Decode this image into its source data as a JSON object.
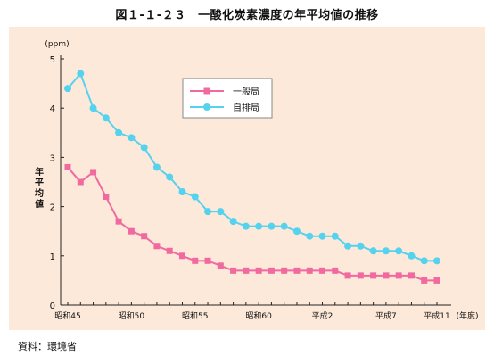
{
  "title": "図１-１-２３　一酸化炭素濃度の年平均値の推移",
  "source": "資料：環境省",
  "chart_data": {
    "type": "line",
    "unit_label": "(ppm)",
    "ylabel_chars": [
      "年",
      "平",
      "均",
      "値"
    ],
    "x_suffix": "(年度)",
    "ylim": [
      0,
      5
    ],
    "yticks": [
      0,
      1,
      2,
      3,
      4,
      5
    ],
    "xticks": [
      {
        "index": 0,
        "label": "昭和45"
      },
      {
        "index": 5,
        "label": "昭和50"
      },
      {
        "index": 10,
        "label": "昭和55"
      },
      {
        "index": 15,
        "label": "昭和60"
      },
      {
        "index": 20,
        "label": "平成2"
      },
      {
        "index": 25,
        "label": "平成7"
      },
      {
        "index": 29,
        "label": "平成11"
      }
    ],
    "n_points": 30,
    "grid": false,
    "legend_position": "top-center",
    "series": [
      {
        "name": "一般局",
        "color": "#f06aa0",
        "marker": "square",
        "values": [
          2.8,
          2.5,
          2.7,
          2.2,
          1.7,
          1.5,
          1.4,
          1.2,
          1.1,
          1.0,
          0.9,
          0.9,
          0.8,
          0.7,
          0.7,
          0.7,
          0.7,
          0.7,
          0.7,
          0.7,
          0.7,
          0.7,
          0.6,
          0.6,
          0.6,
          0.6,
          0.6,
          0.6,
          0.5,
          0.5
        ]
      },
      {
        "name": "自排局",
        "color": "#55d2ee",
        "marker": "circle",
        "values": [
          4.4,
          4.7,
          4.0,
          3.8,
          3.5,
          3.4,
          3.2,
          2.8,
          2.6,
          2.3,
          2.2,
          1.9,
          1.9,
          1.7,
          1.6,
          1.6,
          1.6,
          1.6,
          1.5,
          1.4,
          1.4,
          1.4,
          1.2,
          1.2,
          1.1,
          1.1,
          1.1,
          1.0,
          0.9,
          0.9
        ]
      }
    ]
  }
}
